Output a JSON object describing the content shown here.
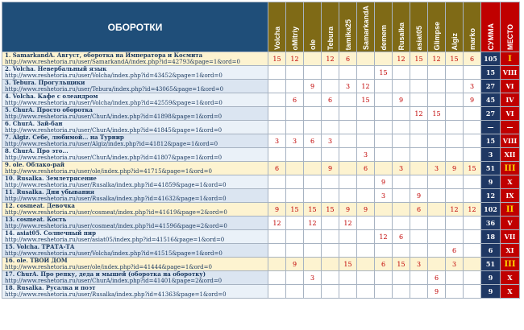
{
  "header": {
    "title": "ОБОРОТКИ",
    "players": [
      "Volcha",
      "oMitriy",
      "ole",
      "Tebura",
      "tamika25",
      "SamarkandA",
      "demem",
      "Rusalka",
      "asiat05",
      "Glimpse",
      "Algiz",
      "marko"
    ],
    "sum_label": "СУММА",
    "place_label": "МЕСТО"
  },
  "colors": {
    "header_blue": "#1f4e79",
    "player_header": "#7f6a16",
    "sum_bg": "#1f3864",
    "place_bg": "#c00000",
    "score_text": "#c00000",
    "highlight_row": "#fdf3d0"
  },
  "rows": [
    {
      "title": "1. SamarkandA. Август, оборотка на Императора и Космита",
      "url": "http://www.reshetoria.ru/user/SamarkandA/index.php?id=42793&page=1&ord=0",
      "scores": [
        "15",
        "12",
        "",
        "12",
        "6",
        "",
        "",
        "12",
        "15",
        "12",
        "15",
        "6"
      ],
      "sum": "105",
      "place": "I",
      "hl": true
    },
    {
      "title": "2. Volcha. Невербальный язык",
      "url": "http://www.reshetoria.ru/user/Volcha/index.php?id=43452&page=1&ord=0",
      "scores": [
        "",
        "",
        "",
        "",
        "",
        "",
        "15",
        "",
        "",
        "",
        "",
        ""
      ],
      "sum": "15",
      "place": "VIII",
      "hl": false
    },
    {
      "title": "3. Tebura. Прогульщики",
      "url": "http://www.reshetoria.ru/user/Tebura/index.php?id=43065&page=1&ord=0",
      "scores": [
        "",
        "",
        "9",
        "",
        "3",
        "12",
        "",
        "",
        "",
        "",
        "",
        "3"
      ],
      "sum": "27",
      "place": "VI",
      "hl": false
    },
    {
      "title": "4. Volcha. Кафе с олеандром",
      "url": "http://www.reshetoria.ru/user/Volcha/index.php?id=42559&page=1&ord=0",
      "scores": [
        "",
        "6",
        "",
        "6",
        "",
        "15",
        "",
        "9",
        "",
        "",
        "",
        "9"
      ],
      "sum": "45",
      "place": "IV",
      "hl": false
    },
    {
      "title": "5. ChurA. Просто оборотка",
      "url": "http://www.reshetoria.ru/user/ChurA/index.php?id=41898&page=1&ord=0",
      "scores": [
        "",
        "",
        "",
        "",
        "",
        "",
        "",
        "",
        "12",
        "15",
        "",
        ""
      ],
      "sum": "27",
      "place": "VI",
      "hl": false
    },
    {
      "title": "6. ChurA. Зай-бан",
      "url": "http://www.reshetoria.ru/user/ChurA/index.php?id=41845&page=1&ord=0",
      "scores": [
        "",
        "",
        "",
        "",
        "",
        "",
        "",
        "",
        "",
        "",
        "",
        ""
      ],
      "sum": "—",
      "place": "—",
      "hl": false
    },
    {
      "title": "7. Algiz. Себе, любимой... на Турнир",
      "url": "http://www.reshetoria.ru/user/Algiz/index.php?id=41812&page=1&ord=0",
      "scores": [
        "3",
        "3",
        "6",
        "3",
        "",
        "",
        "",
        "",
        "",
        "",
        "",
        ""
      ],
      "sum": "15",
      "place": "VIII",
      "hl": false
    },
    {
      "title": "8. ChurA. Про это...",
      "url": "http://www.reshetoria.ru/user/ChurA/index.php?id=41807&page=1&ord=0",
      "scores": [
        "",
        "",
        "",
        "",
        "",
        "3",
        "",
        "",
        "",
        "",
        "",
        ""
      ],
      "sum": "3",
      "place": "XII",
      "hl": false
    },
    {
      "title": "9. ole. Облако-рай",
      "url": "http://www.reshetoria.ru/user/ole/index.php?id=41715&page=1&ord=0",
      "scores": [
        "6",
        "",
        "",
        "9",
        "",
        "6",
        "",
        "3",
        "",
        "3",
        "9",
        "15"
      ],
      "sum": "51",
      "place": "III",
      "hl": true
    },
    {
      "title": "10. Rusalka. Землетрясение",
      "url": "http://www.reshetoria.ru/user/Rusalka/index.php?id=41859&page=1&ord=0",
      "scores": [
        "",
        "",
        "",
        "",
        "",
        "",
        "9",
        "",
        "",
        "",
        "",
        ""
      ],
      "sum": "9",
      "place": "X",
      "hl": false
    },
    {
      "title": "11. Rusalka. Дни убывания",
      "url": "http://www.reshetoria.ru/user/Rusalka/index.php?id=41632&page=1&ord=0",
      "scores": [
        "",
        "",
        "",
        "",
        "",
        "",
        "3",
        "",
        "9",
        "",
        "",
        ""
      ],
      "sum": "12",
      "place": "IX",
      "hl": false
    },
    {
      "title": "12. cosmeat. Девочка",
      "url": "http://www.reshetoria.ru/user/cosmeat/index.php?id=41619&page=2&ord=0",
      "scores": [
        "9",
        "15",
        "15",
        "15",
        "9",
        "9",
        "",
        "",
        "6",
        "",
        "12",
        "12"
      ],
      "sum": "102",
      "place": "II",
      "hl": true
    },
    {
      "title": "13. cosmeat. Кость",
      "url": "http://www.reshetoria.ru/user/cosmeat/index.php?id=41596&page=2&ord=0",
      "scores": [
        "12",
        "",
        "12",
        "",
        "12",
        "",
        "",
        "",
        "",
        "",
        "",
        ""
      ],
      "sum": "36",
      "place": "V",
      "hl": false
    },
    {
      "title": "14. asiat05. Солнечный пир",
      "url": "http://www.reshetoria.ru/user/asiat05/index.php?id=41516&page=1&ord=0",
      "scores": [
        "",
        "",
        "",
        "",
        "",
        "",
        "12",
        "6",
        "",
        "",
        "",
        ""
      ],
      "sum": "18",
      "place": "VII",
      "hl": false
    },
    {
      "title": "15. Volcha. ТРАТА-ТА",
      "url": "http://www.reshetoria.ru/user/Volcha/index.php?id=41515&page=1&ord=0",
      "scores": [
        "",
        "",
        "",
        "",
        "",
        "",
        "",
        "",
        "",
        "",
        "6",
        ""
      ],
      "sum": "6",
      "place": "XI",
      "hl": false
    },
    {
      "title": "16. ole. ТВОЙ ДОМ",
      "url": "http://www.reshetoria.ru/user/ole/index.php?id=41444&page=1&ord=0",
      "scores": [
        "",
        "9",
        "",
        "",
        "15",
        "",
        "6",
        "15",
        "3",
        "",
        "3",
        ""
      ],
      "sum": "51",
      "place": "III",
      "hl": true
    },
    {
      "title": "17. ChurA. Про репку, деда и мышей (оборотка на оборотку)",
      "url": "http://www.reshetoria.ru/user/ChurA/index.php?id=41401&page=2&ord=0",
      "scores": [
        "",
        "",
        "3",
        "",
        "",
        "",
        "",
        "",
        "",
        "6",
        "",
        ""
      ],
      "sum": "9",
      "place": "X",
      "hl": false
    },
    {
      "title": "18. Rusalka. Русалка и поэт",
      "url": "http://www.reshetoria.ru/user/Rusalka/index.php?id=41363&page=1&ord=0",
      "scores": [
        "",
        "",
        "",
        "",
        "",
        "",
        "",
        "",
        "",
        "9",
        "",
        ""
      ],
      "sum": "9",
      "place": "X",
      "hl": false
    }
  ]
}
